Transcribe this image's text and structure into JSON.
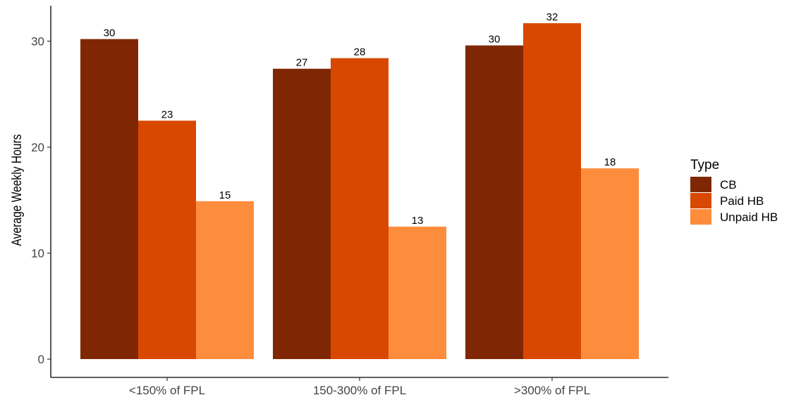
{
  "chart_data": {
    "type": "bar",
    "title": "",
    "xlabel": "",
    "ylabel": "Average Weekly Hours",
    "categories": [
      "<150% of FPL",
      "150-300% of FPL",
      ">300% of FPL"
    ],
    "series": [
      {
        "name": "CB",
        "color": "#7F2704",
        "values": [
          30.2,
          27.4,
          29.6
        ]
      },
      {
        "name": "Paid HB",
        "color": "#D94801",
        "values": [
          22.5,
          28.4,
          31.7
        ]
      },
      {
        "name": "Unpaid HB",
        "color": "#FD8D3C",
        "values": [
          14.9,
          12.5,
          18.0
        ]
      }
    ],
    "value_labels": [
      [
        "30",
        "23",
        "15"
      ],
      [
        "27",
        "28",
        "13"
      ],
      [
        "30",
        "32",
        "18"
      ]
    ],
    "ylim": [
      0,
      33
    ],
    "yticks": [
      0,
      10,
      20,
      30
    ],
    "grid": false,
    "legend": {
      "title": "Type",
      "placement": "right",
      "entries": [
        "CB",
        "Paid HB",
        "Unpaid HB"
      ]
    }
  }
}
